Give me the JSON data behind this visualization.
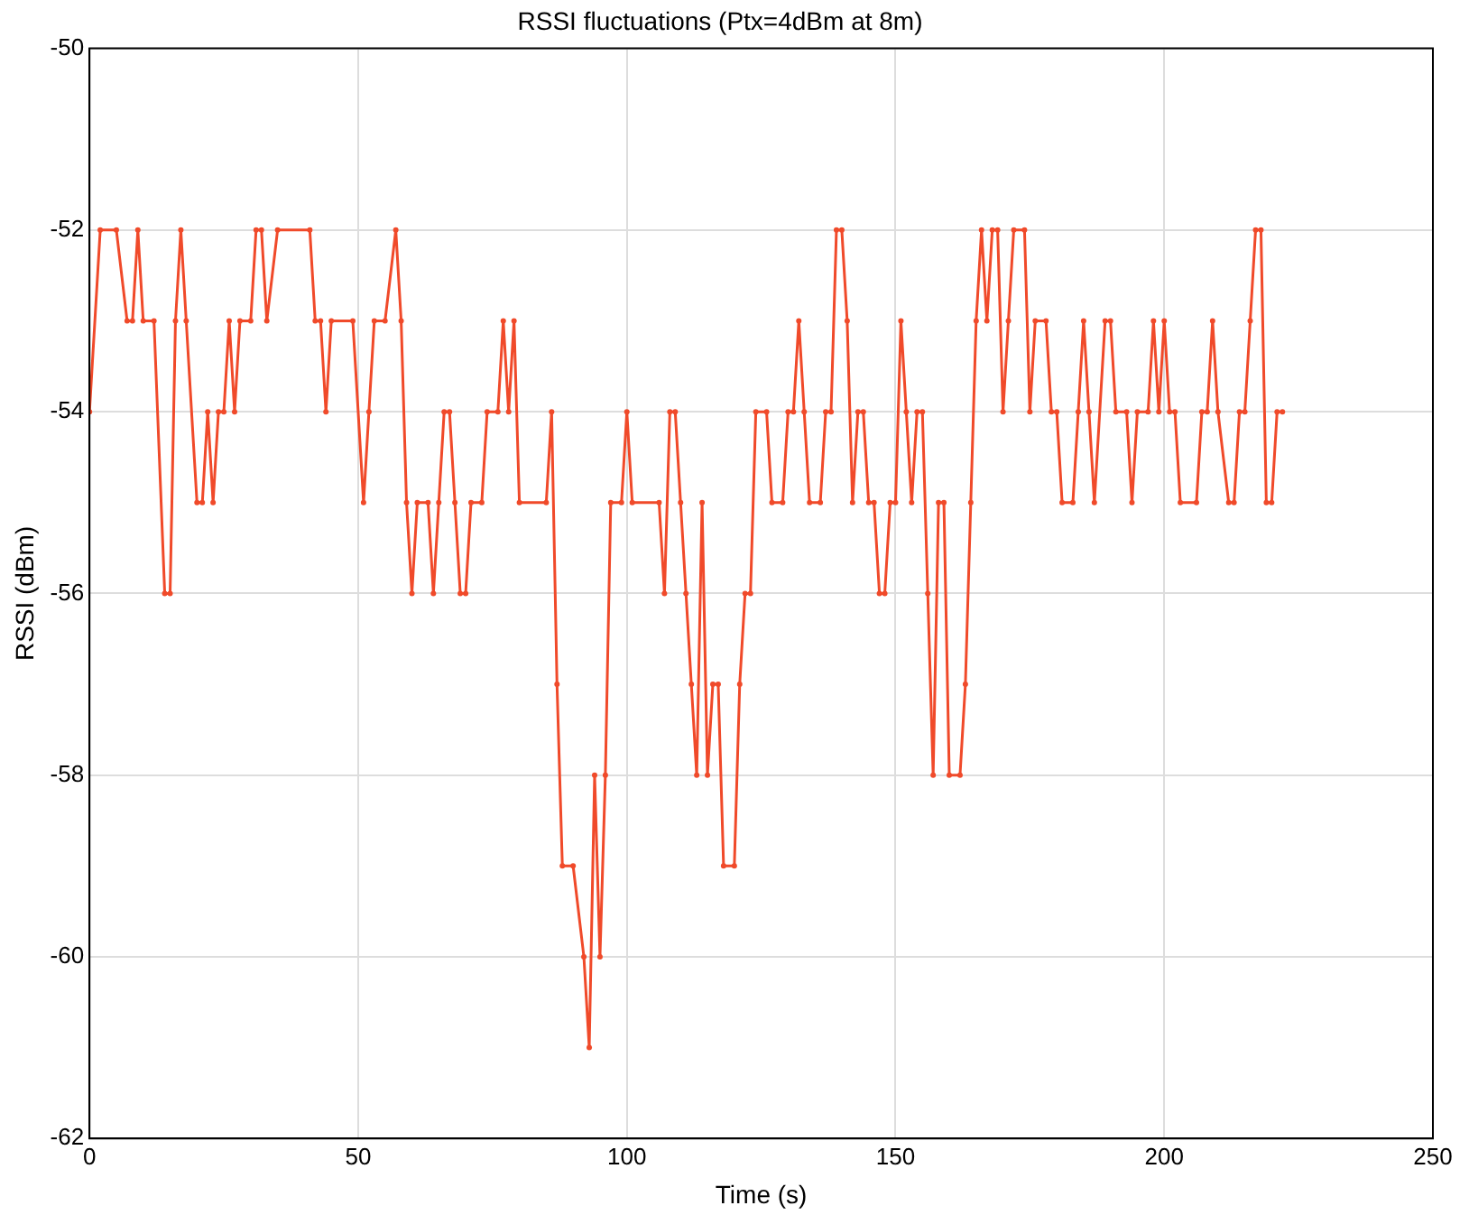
{
  "chart_data": {
    "type": "line",
    "title": "RSSI fluctuations (Ptx=4dBm at 8m)",
    "xlabel": "Time (s)",
    "ylabel": "RSSI (dBm)",
    "x": [
      0,
      2,
      5,
      7,
      8,
      9,
      10,
      12,
      14,
      15,
      16,
      17,
      18,
      20,
      21,
      22,
      23,
      24,
      25,
      26,
      27,
      28,
      30,
      31,
      32,
      33,
      35,
      41,
      42,
      43,
      44,
      45,
      49,
      51,
      52,
      53,
      55,
      57,
      58,
      59,
      60,
      61,
      63,
      64,
      65,
      66,
      67,
      68,
      69,
      70,
      71,
      73,
      74,
      76,
      77,
      78,
      79,
      80,
      85,
      86,
      87,
      88,
      90,
      92,
      93,
      94,
      95,
      96,
      97,
      99,
      100,
      101,
      106,
      107,
      108,
      109,
      110,
      111,
      112,
      113,
      114,
      115,
      116,
      117,
      118,
      120,
      121,
      122,
      123,
      124,
      126,
      127,
      129,
      130,
      131,
      132,
      133,
      134,
      136,
      137,
      138,
      139,
      140,
      141,
      142,
      143,
      144,
      145,
      146,
      147,
      148,
      149,
      150,
      151,
      152,
      153,
      154,
      155,
      156,
      157,
      158,
      159,
      160,
      162,
      163,
      164,
      165,
      166,
      167,
      168,
      169,
      170,
      171,
      172,
      174,
      175,
      176,
      178,
      179,
      180,
      181,
      183,
      184,
      185,
      186,
      187,
      189,
      190,
      191,
      193,
      194,
      195,
      197,
      198,
      199,
      200,
      201,
      202,
      203,
      206,
      207,
      208,
      209,
      210,
      212,
      213,
      214,
      215,
      216,
      217,
      218,
      219,
      220,
      221,
      222
    ],
    "series": [
      {
        "color": "#f04a2a",
        "values": [
          -54,
          -52,
          -52,
          -53,
          -53,
          -52,
          -53,
          -53,
          -56,
          -56,
          -53,
          -52,
          -53,
          -55,
          -55,
          -54,
          -55,
          -54,
          -54,
          -53,
          -54,
          -53,
          -53,
          -52,
          -52,
          -53,
          -52,
          -52,
          -53,
          -53,
          -54,
          -53,
          -53,
          -55,
          -54,
          -53,
          -53,
          -52,
          -53,
          -55,
          -56,
          -55,
          -55,
          -56,
          -55,
          -54,
          -54,
          -55,
          -56,
          -56,
          -55,
          -55,
          -54,
          -54,
          -53,
          -54,
          -53,
          -55,
          -55,
          -54,
          -57,
          -59,
          -59,
          -60,
          -61,
          -58,
          -60,
          -58,
          -55,
          -55,
          -54,
          -55,
          -55,
          -56,
          -54,
          -54,
          -55,
          -56,
          -57,
          -58,
          -55,
          -58,
          -57,
          -57,
          -59,
          -59,
          -57,
          -56,
          -56,
          -54,
          -54,
          -55,
          -55,
          -54,
          -54,
          -53,
          -54,
          -55,
          -55,
          -54,
          -54,
          -52,
          -52,
          -53,
          -55,
          -54,
          -54,
          -55,
          -55,
          -56,
          -56,
          -55,
          -55,
          -53,
          -54,
          -55,
          -54,
          -54,
          -56,
          -58,
          -55,
          -55,
          -58,
          -58,
          -57,
          -55,
          -53,
          -52,
          -53,
          -52,
          -52,
          -54,
          -53,
          -52,
          -52,
          -54,
          -53,
          -53,
          -54,
          -54,
          -55,
          -55,
          -54,
          -53,
          -54,
          -55,
          -53,
          -53,
          -54,
          -54,
          -55,
          -54,
          -54,
          -53,
          -54,
          -53,
          -54,
          -54,
          -55,
          -55,
          -54,
          -54,
          -53,
          -54,
          -55,
          -55,
          -54,
          -54,
          -53,
          -52,
          -52,
          -55,
          -55,
          -54,
          -54
        ]
      }
    ],
    "xlim": [
      0,
      250
    ],
    "xticks": [
      0,
      50,
      100,
      150,
      200,
      250
    ],
    "ylim": [
      -62,
      -50
    ],
    "yticks": [
      -62,
      -60,
      -58,
      -56,
      -54,
      -52,
      -50
    ],
    "grid": true,
    "marker": "circle",
    "line_style": "solid"
  }
}
